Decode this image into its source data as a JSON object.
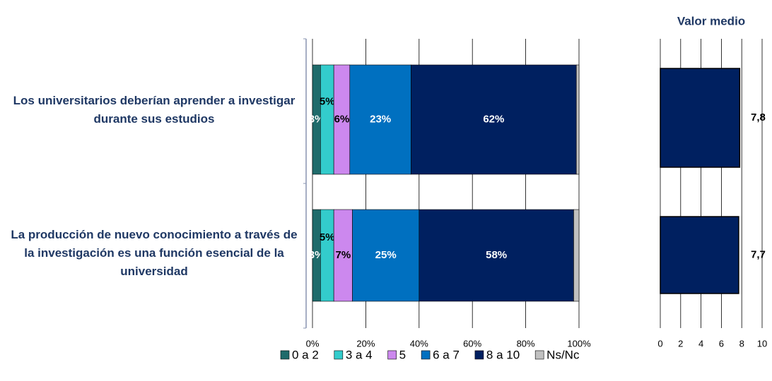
{
  "chart_data": [
    {
      "type": "stacked_bar",
      "orientation": "horizontal",
      "categories": [
        "Los universitarios deberían aprender a investigar durante sus estudios",
        "La producción de nuevo conocimiento a través de la investigación es una función esencial de la universidad"
      ],
      "series": [
        {
          "name": "0 a 2",
          "color": "#1f6b6b",
          "values": [
            3,
            3
          ],
          "value_labels": [
            "3%",
            "3%"
          ]
        },
        {
          "name": "3 a 4",
          "color": "#33cccc",
          "values": [
            5,
            5
          ],
          "value_labels": [
            "5%",
            "5%"
          ]
        },
        {
          "name": "5",
          "color": "#cc88ee",
          "values": [
            6,
            7
          ],
          "value_labels": [
            "6%",
            "7%"
          ]
        },
        {
          "name": "6 a 7",
          "color": "#0070c0",
          "values": [
            23,
            25
          ],
          "value_labels": [
            "23%",
            "25%"
          ]
        },
        {
          "name": "8 a 10",
          "color": "#002060",
          "values": [
            62,
            58
          ],
          "value_labels": [
            "62%",
            "58%"
          ]
        },
        {
          "name": "Ns/Nc",
          "color": "#c0c0c0",
          "values": [
            1,
            2
          ]
        }
      ],
      "xlim": [
        0,
        100
      ],
      "xticks": [
        {
          "value": 0,
          "label": "0%"
        },
        {
          "value": 20,
          "label": "20%"
        },
        {
          "value": 40,
          "label": "40%"
        },
        {
          "value": 60,
          "label": "60%"
        },
        {
          "value": 80,
          "label": "80%"
        },
        {
          "value": 100,
          "label": "100%"
        }
      ],
      "grid": true
    },
    {
      "type": "bar",
      "orientation": "horizontal",
      "title": "Valor medio",
      "values": [
        7.8,
        7.7
      ],
      "value_labels": [
        "7,8",
        "7,7"
      ],
      "color": "#002060",
      "xlim": [
        0,
        10
      ],
      "xticks": [
        0,
        2,
        4,
        6,
        8,
        10
      ],
      "grid": true
    }
  ]
}
